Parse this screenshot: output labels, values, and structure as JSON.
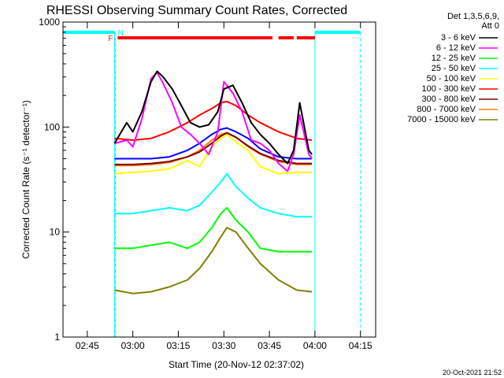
{
  "chart_data": {
    "type": "line",
    "title": "RHESSI Observing Summary Count Rates, Corrected",
    "xlabel": "Start Time (20-Nov-12 02:37:02)",
    "ylabel": "Corrected Count Rate (s⁻¹ detector⁻¹)",
    "yscale": "log",
    "xlim": [
      "02:37",
      "04:20"
    ],
    "ylim": [
      1,
      1000
    ],
    "x_ticks": [
      "02:45",
      "03:00",
      "03:15",
      "03:30",
      "03:45",
      "04:00",
      "04:15"
    ],
    "y_ticks": [
      "1",
      "10",
      "100",
      "1000"
    ],
    "legend_header": [
      "Det 1,3,5,6,9,",
      "Att 0"
    ],
    "legend_position": "outside-right",
    "footer": "20-Oct-2021 21:52",
    "flags": {
      "night_label": "N",
      "flare_label": "F",
      "night_intervals": [
        [
          "02:37",
          "02:54"
        ],
        [
          "04:00",
          "04:15"
        ]
      ],
      "flare_intervals": [
        [
          "02:55",
          "03:46"
        ],
        [
          "03:48",
          "03:53"
        ],
        [
          "03:54",
          "04:00"
        ]
      ]
    },
    "series": [
      {
        "name": "3 - 6 keV",
        "color": "#000000",
        "x": [
          "02:54",
          "02:58",
          "03:00",
          "03:03",
          "03:06",
          "03:08",
          "03:10",
          "03:13",
          "03:16",
          "03:19",
          "03:22",
          "03:25",
          "03:28",
          "03:30",
          "03:33",
          "03:36",
          "03:39",
          "03:42",
          "03:45",
          "03:48",
          "03:51",
          "03:53",
          "03:55",
          "03:58",
          "03:59"
        ],
        "y": [
          70,
          110,
          90,
          140,
          270,
          340,
          300,
          230,
          160,
          110,
          100,
          105,
          140,
          230,
          250,
          170,
          110,
          85,
          70,
          55,
          45,
          60,
          170,
          60,
          55
        ]
      },
      {
        "name": "6 - 12 keV",
        "color": "#ff00ff",
        "x": [
          "02:54",
          "02:58",
          "03:00",
          "03:03",
          "03:06",
          "03:08",
          "03:10",
          "03:13",
          "03:16",
          "03:19",
          "03:22",
          "03:25",
          "03:28",
          "03:30",
          "03:33",
          "03:36",
          "03:39",
          "03:42",
          "03:45",
          "03:48",
          "03:51",
          "03:53",
          "03:55",
          "03:58",
          "03:59"
        ],
        "y": [
          70,
          75,
          65,
          120,
          290,
          330,
          260,
          170,
          100,
          85,
          70,
          55,
          90,
          270,
          210,
          140,
          75,
          70,
          60,
          45,
          38,
          55,
          130,
          55,
          50
        ]
      },
      {
        "name": "12 - 25 keV",
        "color": "#00ff00",
        "x": [
          "02:54",
          "03:00",
          "03:06",
          "03:12",
          "03:18",
          "03:22",
          "03:26",
          "03:29",
          "03:31",
          "03:34",
          "03:38",
          "03:42",
          "03:48",
          "03:54",
          "03:59"
        ],
        "y": [
          7,
          7,
          7.5,
          8,
          7,
          8,
          11,
          15,
          17,
          13,
          10,
          7,
          6.5,
          6.5,
          6.5
        ]
      },
      {
        "name": "25 - 50 keV",
        "color": "#00ffff",
        "x": [
          "02:54",
          "03:00",
          "03:06",
          "03:12",
          "03:18",
          "03:22",
          "03:26",
          "03:29",
          "03:31",
          "03:34",
          "03:38",
          "03:42",
          "03:48",
          "03:54",
          "03:59"
        ],
        "y": [
          15,
          15,
          16,
          17,
          16,
          18,
          24,
          30,
          36,
          27,
          21,
          17,
          15,
          14,
          14
        ]
      },
      {
        "name": "50 - 100 keV",
        "color": "#ffff00",
        "x": [
          "02:54",
          "03:00",
          "03:06",
          "03:12",
          "03:18",
          "03:22",
          "03:26",
          "03:29",
          "03:31",
          "03:34",
          "03:38",
          "03:42",
          "03:48",
          "03:54",
          "03:59"
        ],
        "y": [
          36,
          37,
          38,
          40,
          48,
          42,
          65,
          78,
          85,
          72,
          60,
          42,
          36,
          37,
          37
        ]
      },
      {
        "name": "100 - 300 keV",
        "color": "#ff0000",
        "x": [
          "02:54",
          "03:00",
          "03:06",
          "03:12",
          "03:18",
          "03:22",
          "03:26",
          "03:29",
          "03:31",
          "03:34",
          "03:38",
          "03:42",
          "03:48",
          "03:54",
          "03:59"
        ],
        "y": [
          78,
          75,
          78,
          90,
          110,
          130,
          150,
          170,
          175,
          160,
          130,
          110,
          90,
          78,
          75
        ]
      },
      {
        "name": "300 - 800 keV",
        "color": "#800000",
        "x": [
          "02:54",
          "03:00",
          "03:06",
          "03:12",
          "03:18",
          "03:22",
          "03:26",
          "03:29",
          "03:31",
          "03:34",
          "03:38",
          "03:42",
          "03:48",
          "03:54",
          "03:59"
        ],
        "y": [
          44,
          44,
          45,
          47,
          52,
          58,
          70,
          82,
          88,
          80,
          66,
          56,
          48,
          45,
          45
        ]
      },
      {
        "name": "800 - 7000 keV",
        "color": "#ff8000",
        "x": [
          "02:54",
          "03:00",
          "03:06",
          "03:12",
          "03:18",
          "03:22",
          "03:26",
          "03:29",
          "03:31",
          "03:34",
          "03:38",
          "03:42",
          "03:48",
          "03:54",
          "03:59"
        ],
        "y": [
          43,
          43,
          44,
          46,
          52,
          60,
          75,
          85,
          88,
          80,
          65,
          55,
          47,
          44,
          44
        ]
      },
      {
        "name": "7000 - 15000 keV",
        "color": "#808000",
        "x": [
          "02:54",
          "03:00",
          "03:06",
          "03:12",
          "03:18",
          "03:22",
          "03:26",
          "03:29",
          "03:31",
          "03:34",
          "03:38",
          "03:42",
          "03:48",
          "03:54",
          "03:59"
        ],
        "y": [
          2.8,
          2.6,
          2.7,
          3,
          3.5,
          4.5,
          6.5,
          9,
          11,
          10,
          7,
          5,
          3.5,
          2.8,
          2.7
        ]
      },
      {
        "name": "",
        "color": "#0000ff",
        "x": [
          "02:54",
          "03:00",
          "03:06",
          "03:12",
          "03:18",
          "03:22",
          "03:26",
          "03:29",
          "03:31",
          "03:34",
          "03:38",
          "03:42",
          "03:48",
          "03:54",
          "03:59"
        ],
        "y": [
          50,
          50,
          50,
          52,
          60,
          70,
          85,
          95,
          98,
          90,
          78,
          62,
          52,
          50,
          50
        ]
      }
    ]
  }
}
